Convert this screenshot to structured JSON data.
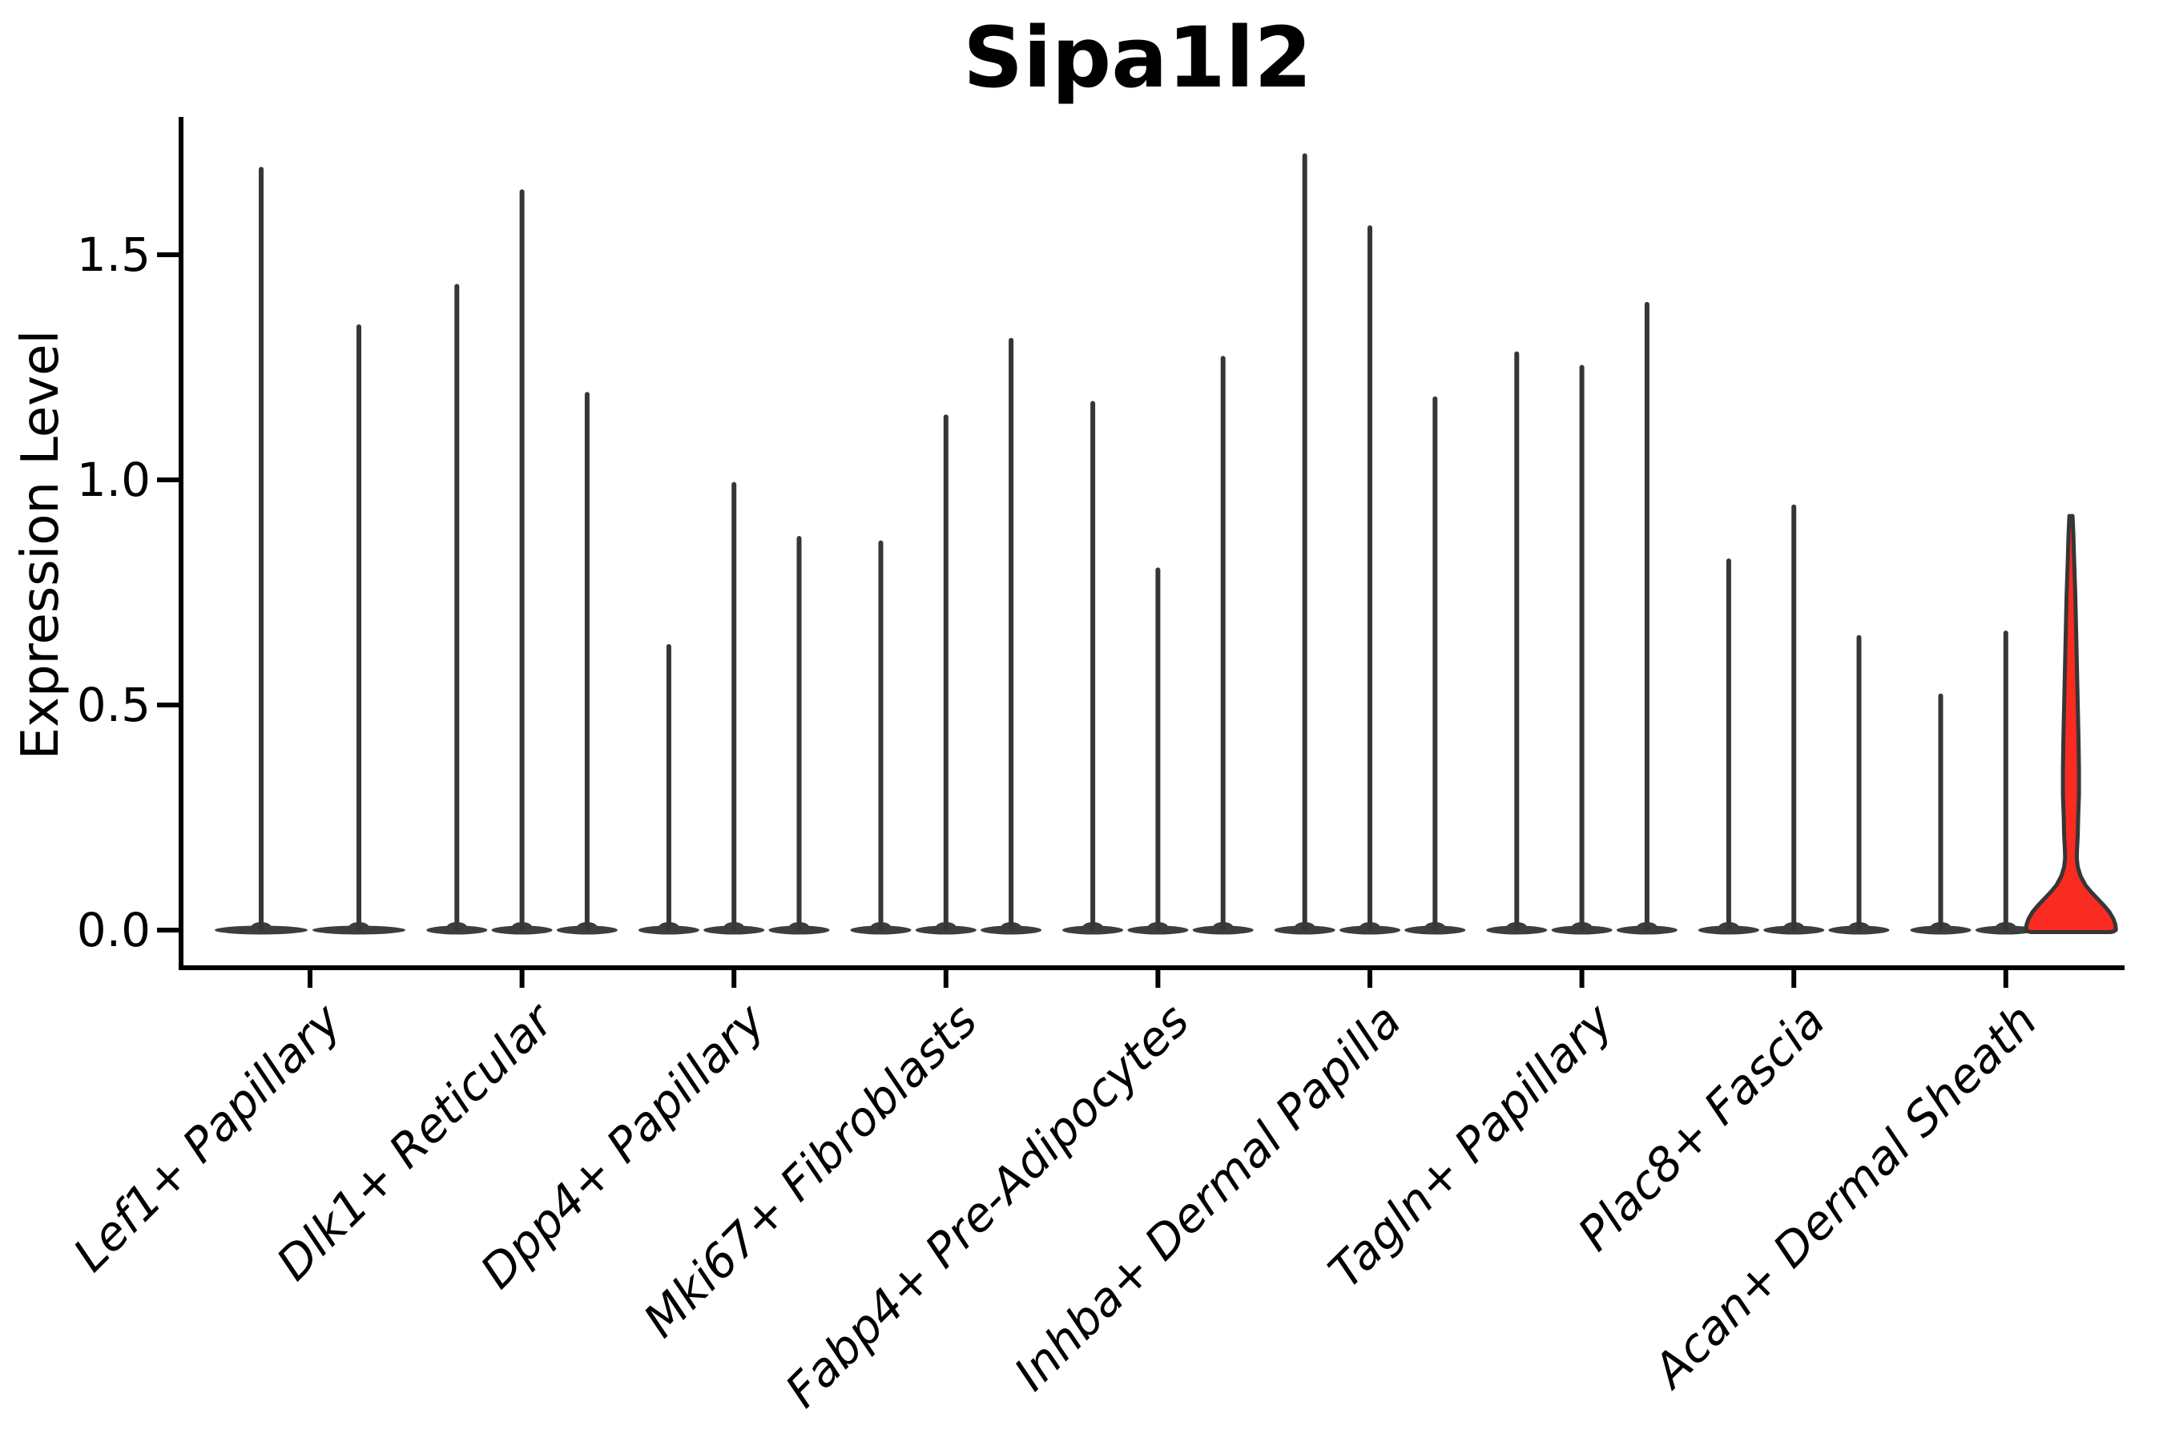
{
  "figure": {
    "title": "Sipa1l2",
    "ylabel": "Expression Level"
  },
  "chart_data": {
    "type": "violin",
    "title": "Sipa1l2",
    "xlabel": "",
    "ylabel": "Expression Level",
    "ylim": [
      -0.084,
      1.8
    ],
    "yticks": [
      0.0,
      0.5,
      1.0,
      1.5
    ],
    "ytick_labels": [
      "0.0",
      "0.5",
      "1.0",
      "1.5"
    ],
    "grid": false,
    "legend": "none",
    "categories": [
      "Lef1+ Papillary",
      "Dlk1+ Reticular",
      "Dpp4+ Papillary",
      "Mki67+ Fibroblasts",
      "Fabp4+ Pre-Adipocytes",
      "Inhba+ Dermal Papilla",
      "Tagln+ Papillary",
      "Plac8+ Fascia",
      "Acan+ Dermal Sheath"
    ],
    "groups": [
      {
        "category": "Lef1+ Papillary",
        "violins": [
          {
            "max": 1.69
          },
          {
            "max": 1.34
          }
        ]
      },
      {
        "category": "Dlk1+ Reticular",
        "violins": [
          {
            "max": 1.43
          },
          {
            "max": 1.64
          },
          {
            "max": 1.19
          }
        ]
      },
      {
        "category": "Dpp4+ Papillary",
        "violins": [
          {
            "max": 0.63
          },
          {
            "max": 0.99
          },
          {
            "max": 0.87
          }
        ]
      },
      {
        "category": "Mki67+ Fibroblasts",
        "violins": [
          {
            "max": 0.86
          },
          {
            "max": 1.14
          },
          {
            "max": 1.31
          }
        ]
      },
      {
        "category": "Fabp4+ Pre-Adipocytes",
        "violins": [
          {
            "max": 1.17
          },
          {
            "max": 0.8
          },
          {
            "max": 1.27
          }
        ]
      },
      {
        "category": "Inhba+ Dermal Papilla",
        "violins": [
          {
            "max": 1.72
          },
          {
            "max": 1.56
          },
          {
            "max": 1.18
          }
        ]
      },
      {
        "category": "Tagln+ Papillary",
        "violins": [
          {
            "max": 1.28
          },
          {
            "max": 1.25
          },
          {
            "max": 1.39
          }
        ]
      },
      {
        "category": "Plac8+ Fascia",
        "violins": [
          {
            "max": 0.82
          },
          {
            "max": 0.94
          },
          {
            "max": 0.65
          }
        ]
      },
      {
        "category": "Acan+ Dermal Sheath",
        "violins": [
          {
            "max": 0.52
          },
          {
            "max": 0.66
          },
          {
            "max": 0.92,
            "highlighted": true,
            "profile_value_halfwidth": [
              [
                0.92,
                0.036
              ],
              [
                0.88,
                0.054
              ],
              [
                0.82,
                0.071
              ],
              [
                0.74,
                0.098
              ],
              [
                0.66,
                0.116
              ],
              [
                0.58,
                0.134
              ],
              [
                0.5,
                0.152
              ],
              [
                0.42,
                0.17
              ],
              [
                0.36,
                0.179
              ],
              [
                0.3,
                0.179
              ],
              [
                0.25,
                0.161
              ],
              [
                0.21,
                0.152
              ],
              [
                0.18,
                0.136
              ],
              [
                0.16,
                0.13
              ],
              [
                0.14,
                0.152
              ],
              [
                0.12,
                0.214
              ],
              [
                0.1,
                0.321
              ],
              [
                0.085,
                0.446
              ],
              [
                0.07,
                0.589
              ],
              [
                0.055,
                0.732
              ],
              [
                0.04,
                0.857
              ],
              [
                0.025,
                0.946
              ],
              [
                0.012,
                0.991
              ],
              [
                0.0,
                1.0
              ]
            ]
          }
        ]
      }
    ],
    "colors": {
      "violin_outline": "#363636",
      "violin_base": "#3d3d3d",
      "highlight_fill": "#fa2b20",
      "axis": "#000000",
      "text": "#000000",
      "background": "#ffffff"
    }
  }
}
